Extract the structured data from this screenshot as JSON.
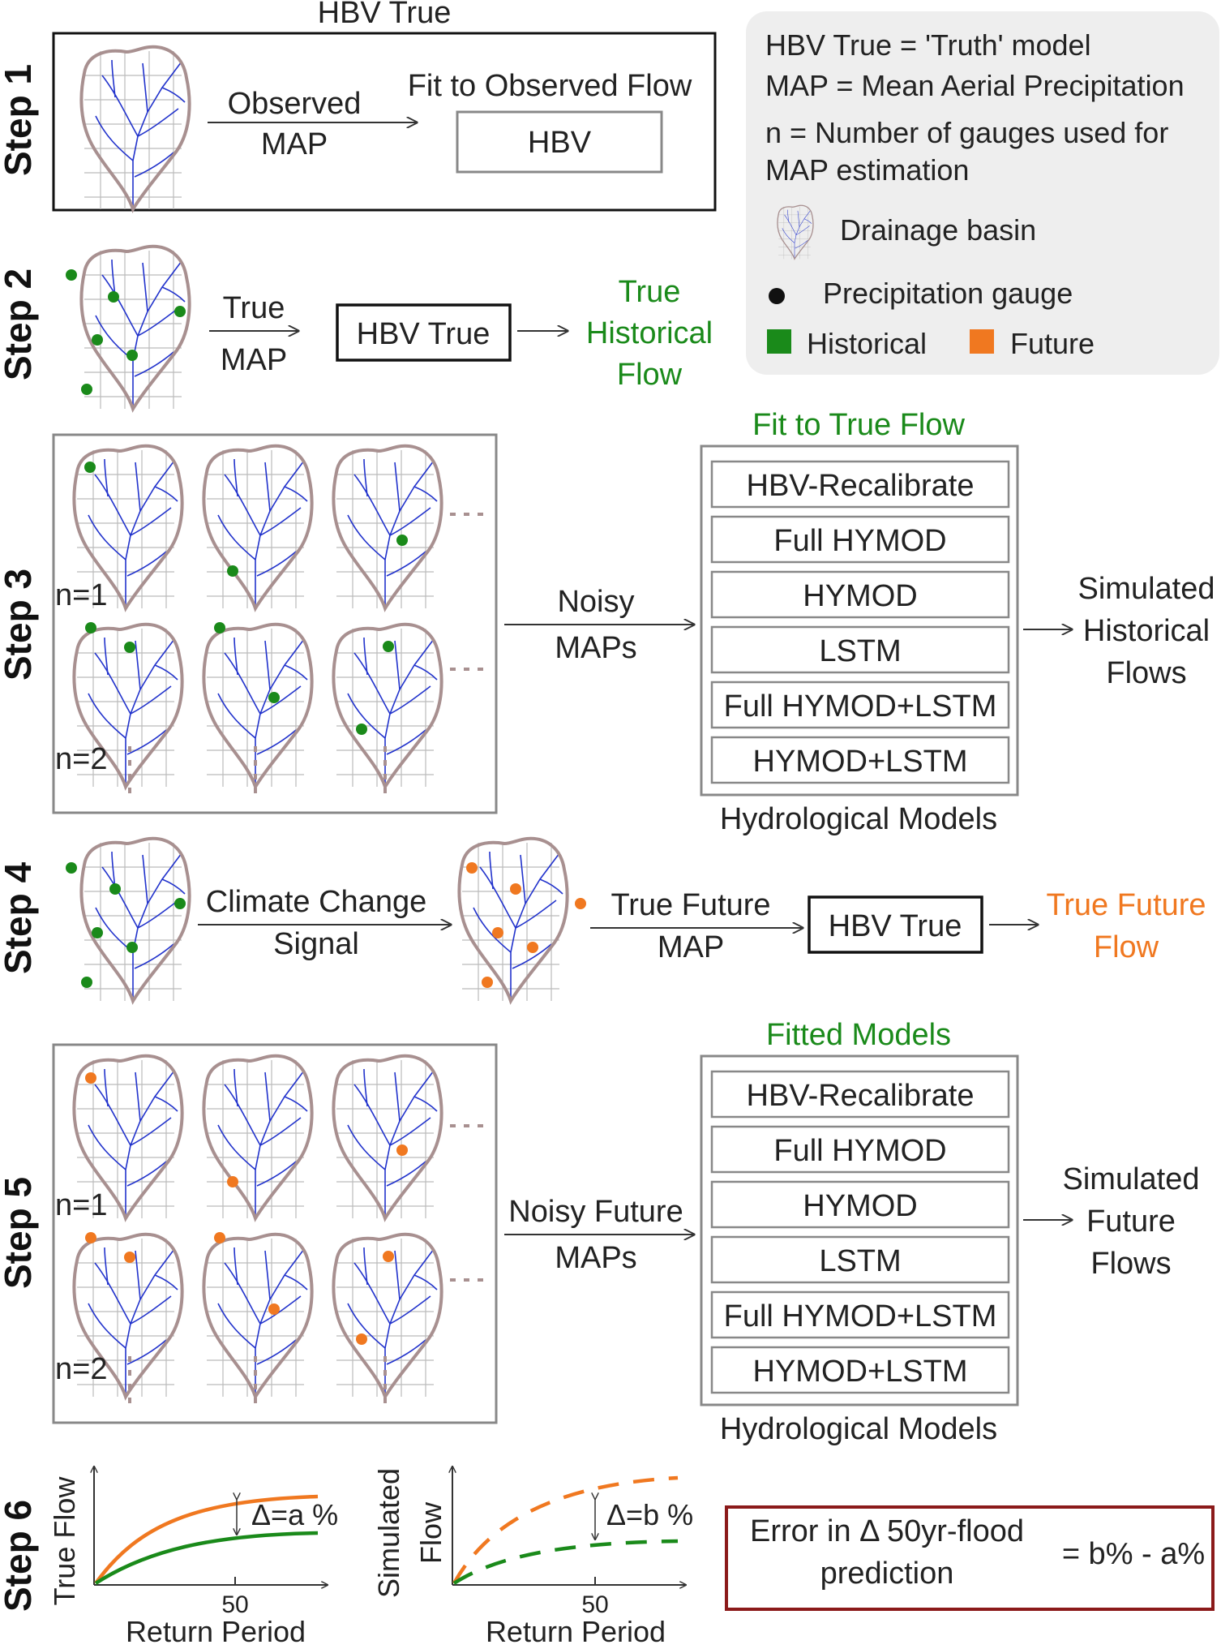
{
  "colors": {
    "historical": "#1a8a1a",
    "future": "#f07820",
    "river": "#2233cc",
    "basin_outline": "#a89090",
    "grid": "#bbbbbb",
    "legend_bg": "#eeeeee",
    "error_box": "#8b1a1a"
  },
  "step1": {
    "label": "Step 1",
    "title": "HBV True",
    "input_line1": "Observed",
    "input_line2": "MAP",
    "fit_label": "Fit to Observed Flow",
    "model": "HBV"
  },
  "legend": {
    "line1": "HBV True = 'Truth' model",
    "line2": "MAP = Mean Aerial Precipitation",
    "line3": "n = Number of gauges used for",
    "line4": "MAP estimation",
    "basin_label": "Drainage basin",
    "gauge_label": "Precipitation gauge",
    "historical_label": "Historical",
    "future_label": "Future",
    "basin_icon": "drainage-basin-icon",
    "gauge_icon": "gauge-dot-icon"
  },
  "step2": {
    "label": "Step 2",
    "input_line1": "True",
    "input_line2": "MAP",
    "model": "HBV True",
    "output_line1": "True",
    "output_line2": "Historical",
    "output_line3": "Flow"
  },
  "step3": {
    "label": "Step 3",
    "n1": "n=1",
    "n2": "n=2",
    "arrow_line1": "Noisy",
    "arrow_line2": "MAPs",
    "header": "Fit to True Flow",
    "models": [
      "HBV-Recalibrate",
      "Full HYMOD",
      "HYMOD",
      "LSTM",
      "Full HYMOD+LSTM",
      "HYMOD+LSTM"
    ],
    "footer": "Hydrological Models",
    "output_line1": "Simulated",
    "output_line2": "Historical",
    "output_line3": "Flows"
  },
  "step4": {
    "label": "Step 4",
    "arrow1_line1": "Climate Change",
    "arrow1_line2": "Signal",
    "arrow2_line1": "True Future",
    "arrow2_line2": "MAP",
    "model": "HBV True",
    "output_line1": "True Future",
    "output_line2": "Flow"
  },
  "step5": {
    "label": "Step 5",
    "n1": "n=1",
    "n2": "n=2",
    "arrow_line1": "Noisy Future",
    "arrow_line2": "MAPs",
    "header": "Fitted Models",
    "models": [
      "HBV-Recalibrate",
      "Full HYMOD",
      "HYMOD",
      "LSTM",
      "Full HYMOD+LSTM",
      "HYMOD+LSTM"
    ],
    "footer": "Hydrological Models",
    "output_line1": "Simulated",
    "output_line2": "Future",
    "output_line3": "Flows"
  },
  "step6": {
    "label": "Step 6",
    "plot1_ylabel": "True Flow",
    "plot1_xlabel": "Return Period",
    "plot1_tick": "50",
    "plot1_delta": "Δ=a %",
    "plot2_ylabel1": "Simulated",
    "plot2_ylabel2": "Flow",
    "plot2_xlabel": "Return Period",
    "plot2_tick": "50",
    "plot2_delta": "Δ=b %",
    "error_line1": "Error in Δ 50yr-flood",
    "error_line2": "prediction",
    "error_formula": "= b% - a%"
  }
}
